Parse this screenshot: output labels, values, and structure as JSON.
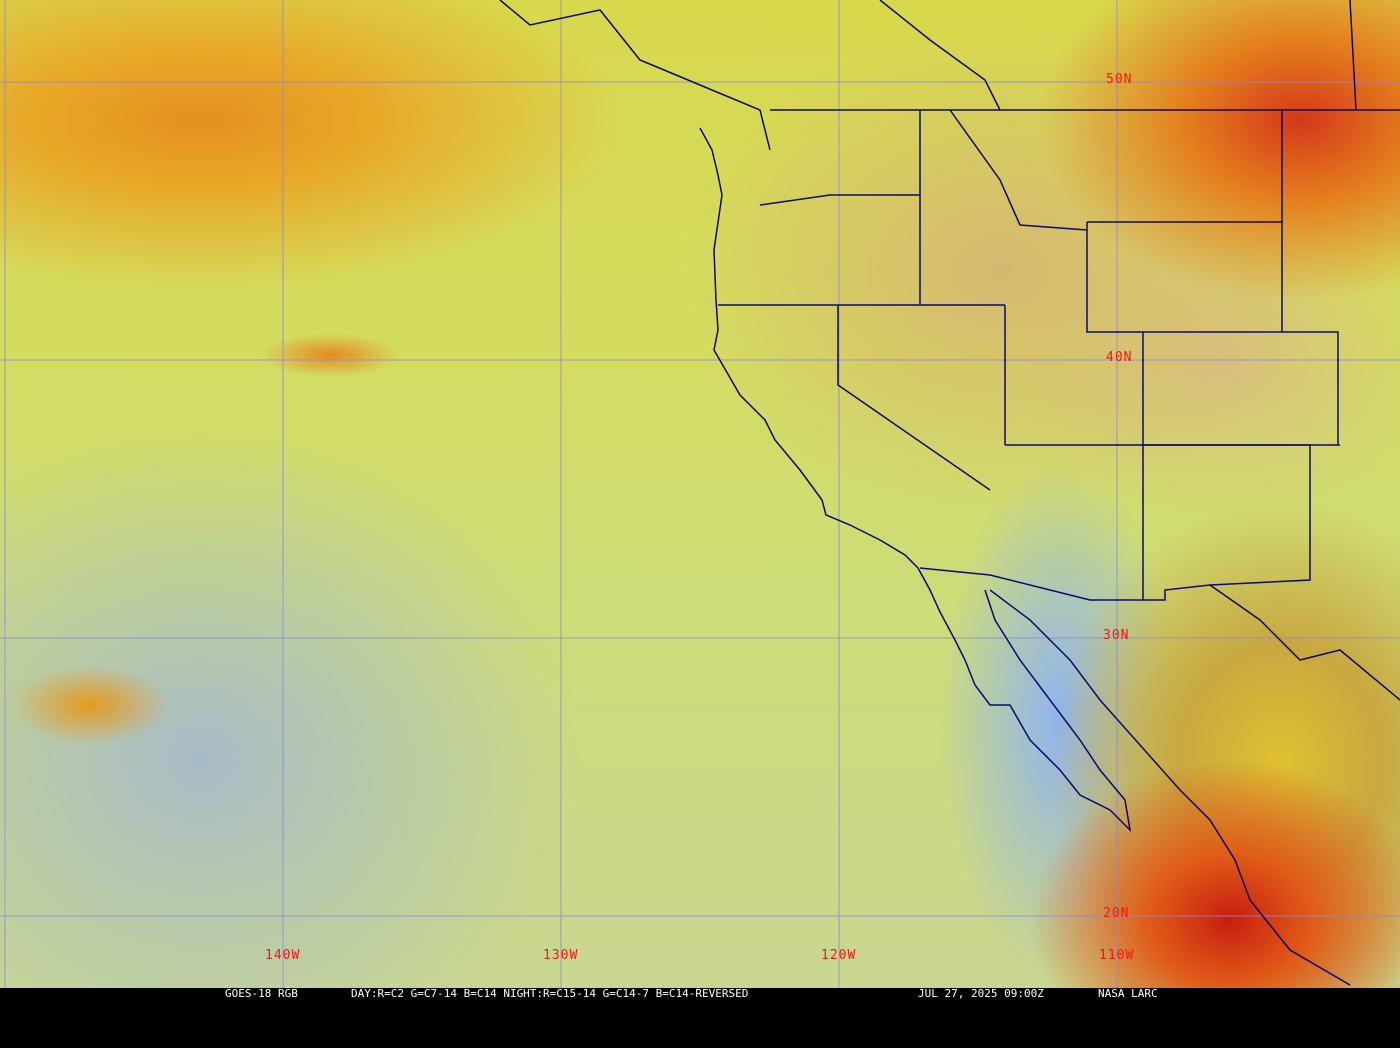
{
  "map": {
    "latitude_labels": [
      "50N",
      "40N",
      "30N",
      "20N"
    ],
    "longitude_labels": [
      "140W",
      "130W",
      "120W",
      "110W"
    ],
    "grid_color": "#8a8ad8",
    "border_color": "#0a0a70",
    "label_color": "#f01818"
  },
  "caption": {
    "satellite": "GOES-18 RGB",
    "recipe": "DAY:R=C2 G=C7-14 B=C14 NIGHT:R=C15-14 G=C14-7 B=C14-REVERSED",
    "timestamp": "JUL 27, 2025 09:00Z",
    "credit": "NASA LARC"
  }
}
